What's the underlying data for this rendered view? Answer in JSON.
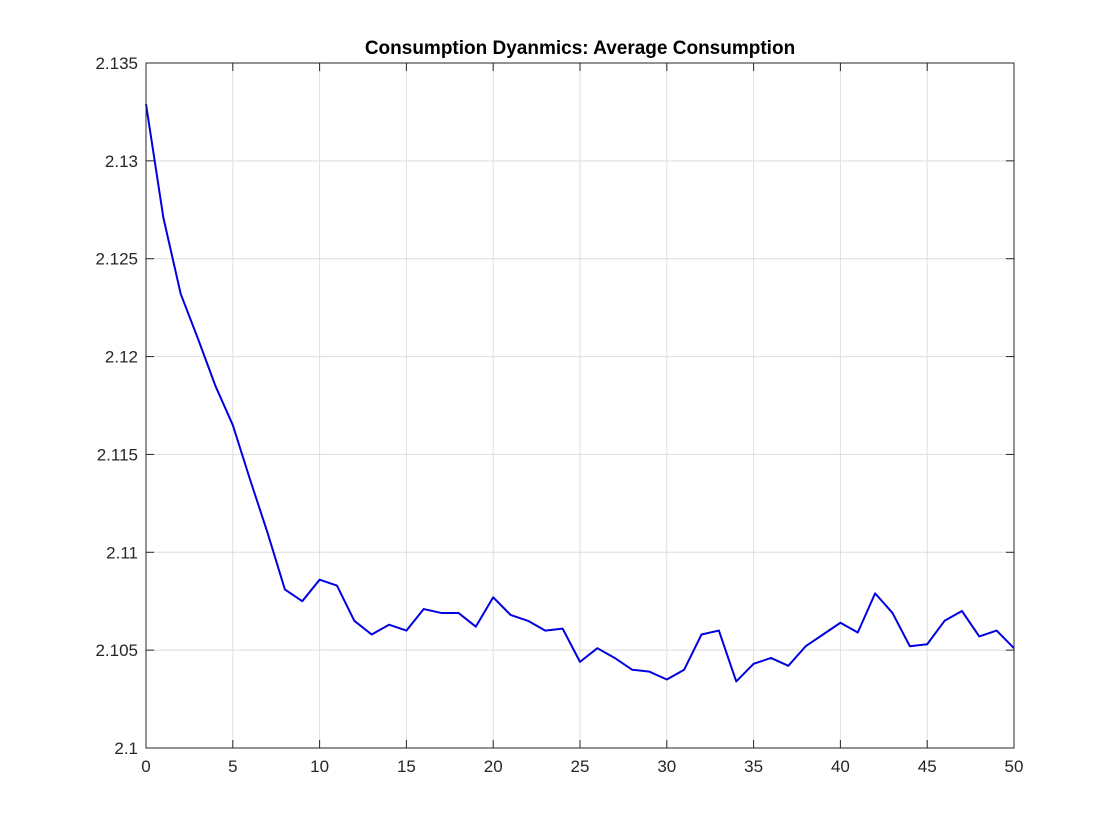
{
  "chart_data": {
    "type": "line",
    "title": "Consumption Dyanmics: Average Consumption",
    "xlabel": "",
    "ylabel": "",
    "xlim": [
      0,
      50
    ],
    "ylim": [
      2.1,
      2.135
    ],
    "grid": true,
    "x_ticks": [
      {
        "value": 0,
        "label": "0"
      },
      {
        "value": 5,
        "label": "5"
      },
      {
        "value": 10,
        "label": "10"
      },
      {
        "value": 15,
        "label": "15"
      },
      {
        "value": 20,
        "label": "20"
      },
      {
        "value": 25,
        "label": "25"
      },
      {
        "value": 30,
        "label": "30"
      },
      {
        "value": 35,
        "label": "35"
      },
      {
        "value": 40,
        "label": "40"
      },
      {
        "value": 45,
        "label": "45"
      },
      {
        "value": 50,
        "label": "50"
      }
    ],
    "y_ticks": [
      {
        "value": 2.1,
        "label": "2.1"
      },
      {
        "value": 2.105,
        "label": "2.105"
      },
      {
        "value": 2.11,
        "label": "2.11"
      },
      {
        "value": 2.115,
        "label": "2.115"
      },
      {
        "value": 2.12,
        "label": "2.12"
      },
      {
        "value": 2.125,
        "label": "2.125"
      },
      {
        "value": 2.13,
        "label": "2.13"
      },
      {
        "value": 2.135,
        "label": "2.135"
      }
    ],
    "series": [
      {
        "color": "#0000e0",
        "x": [
          0,
          1,
          2,
          3,
          4,
          5,
          6,
          7,
          8,
          9,
          10,
          11,
          12,
          13,
          14,
          15,
          16,
          17,
          18,
          19,
          20,
          21,
          22,
          23,
          24,
          25,
          26,
          27,
          28,
          29,
          30,
          31,
          32,
          33,
          34,
          35,
          36,
          37,
          38,
          39,
          40,
          41,
          42,
          43,
          44,
          45,
          46,
          47,
          48,
          49,
          50
        ],
        "y": [
          2.1329,
          2.1271,
          2.1232,
          2.1209,
          2.1185,
          2.1165,
          2.1137,
          2.111,
          2.1081,
          2.1075,
          2.1086,
          2.1083,
          2.1065,
          2.1058,
          2.1063,
          2.106,
          2.1071,
          2.1069,
          2.1069,
          2.1062,
          2.1077,
          2.1068,
          2.1065,
          2.106,
          2.1061,
          2.1044,
          2.1051,
          2.1046,
          2.104,
          2.1039,
          2.1035,
          2.104,
          2.1058,
          2.106,
          2.1034,
          2.1043,
          2.1046,
          2.1042,
          2.1052,
          2.1058,
          2.1064,
          2.1059,
          2.1079,
          2.1069,
          2.1052,
          2.1053,
          2.1065,
          2.107,
          2.1057,
          2.106,
          2.1051
        ]
      }
    ]
  }
}
